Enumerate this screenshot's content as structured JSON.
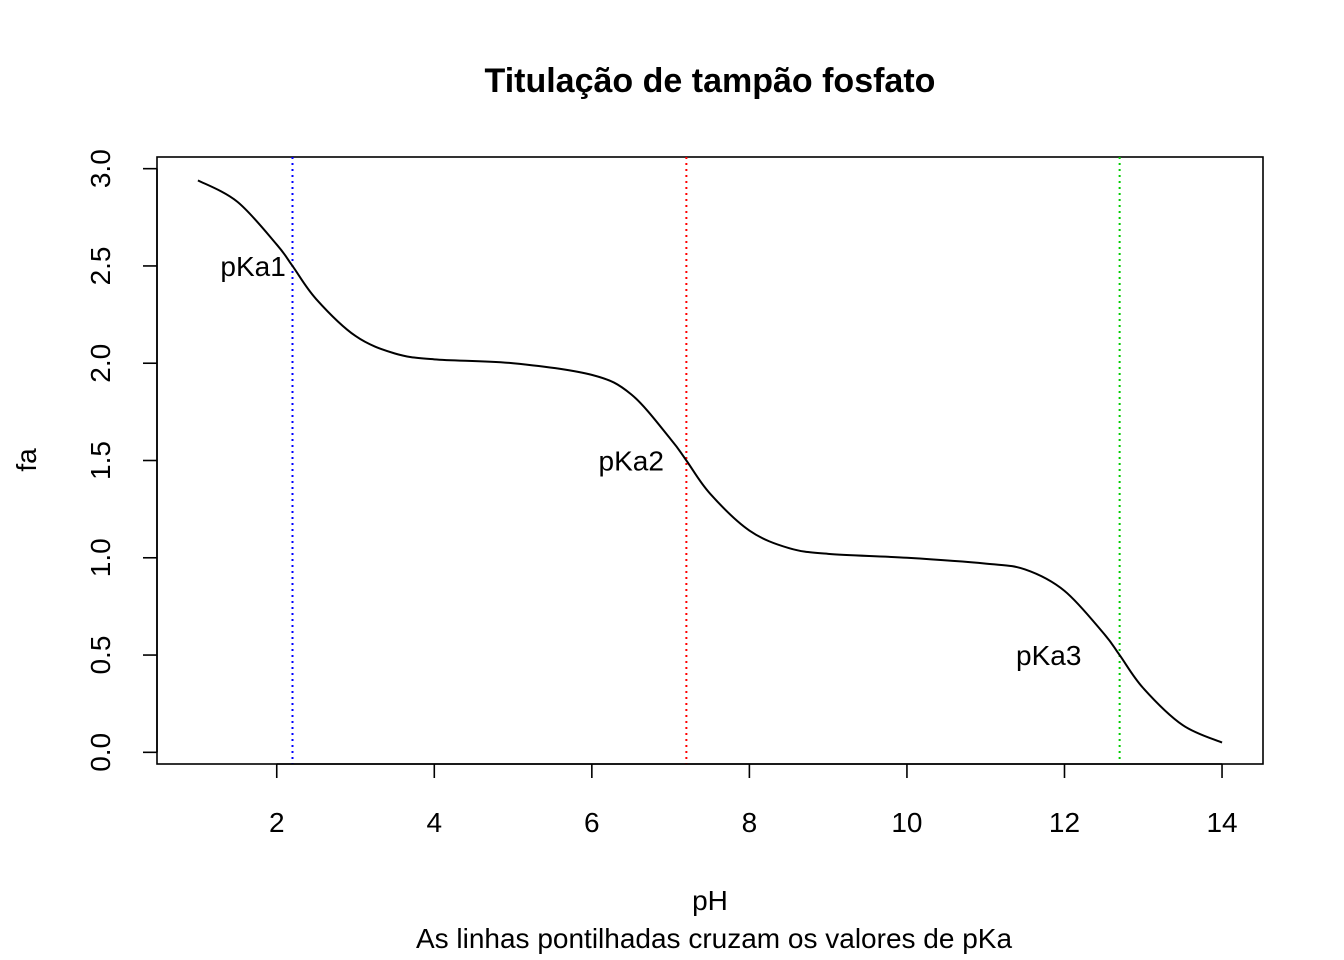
{
  "chart_data": {
    "type": "line",
    "title": "Titulação de tampão fosfato",
    "xlabel": "pH",
    "ylabel": "fa",
    "subtitle": "As linhas pontilhadas cruzam os valores de pKa",
    "xlim": [
      0.48,
      14.52
    ],
    "ylim": [
      -0.06,
      3.06
    ],
    "x_ticks": [
      2,
      4,
      6,
      8,
      10,
      12,
      14
    ],
    "y_ticks": [
      0.0,
      0.5,
      1.0,
      1.5,
      2.0,
      2.5,
      3.0
    ],
    "x_tick_labels": [
      "2",
      "4",
      "6",
      "8",
      "10",
      "12",
      "14"
    ],
    "y_tick_labels": [
      "0.0",
      "0.5",
      "1.0",
      "1.5",
      "2.0",
      "2.5",
      "3.0"
    ],
    "grid": false,
    "legend": "none",
    "series": [
      {
        "color": "#000000",
        "x": [
          1.0,
          1.5,
          2.0,
          2.2,
          2.5,
          3.0,
          3.5,
          4.0,
          5.0,
          6.0,
          6.5,
          7.0,
          7.2,
          7.5,
          8.0,
          8.5,
          9.0,
          10.0,
          11.0,
          11.5,
          12.0,
          12.5,
          12.7,
          13.0,
          13.5,
          14.0
        ],
        "y": [
          2.94,
          2.83,
          2.61,
          2.5,
          2.33,
          2.14,
          2.05,
          2.02,
          2.0,
          1.94,
          1.84,
          1.61,
          1.5,
          1.33,
          1.14,
          1.05,
          1.02,
          1.0,
          0.97,
          0.94,
          0.83,
          0.61,
          0.5,
          0.33,
          0.14,
          0.05
        ]
      }
    ],
    "reference_lines": [
      {
        "x": 2.2,
        "color": "#0000ff",
        "style": "dotted"
      },
      {
        "x": 7.2,
        "color": "#ff0000",
        "style": "dotted"
      },
      {
        "x": 12.7,
        "color": "#00cc00",
        "style": "dotted"
      }
    ],
    "annotations": [
      {
        "text": "pKa1",
        "x": 1.7,
        "y": 2.5
      },
      {
        "text": "pKa2",
        "x": 6.5,
        "y": 1.5
      },
      {
        "text": "pKa3",
        "x": 11.8,
        "y": 0.5
      }
    ]
  }
}
